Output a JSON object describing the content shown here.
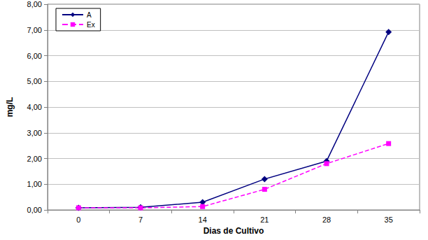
{
  "chart_data": {
    "type": "line",
    "x_label": "Dias de Cultivo",
    "y_label": "mg/L",
    "categories": [
      "0",
      "7",
      "14",
      "21",
      "28",
      "35"
    ],
    "series": [
      {
        "name": "A",
        "color": "#000080",
        "marker": "diamond",
        "line_style": "solid",
        "values": [
          0.08,
          0.1,
          0.3,
          1.2,
          1.9,
          6.92
        ]
      },
      {
        "name": "Ex",
        "color": "#ff00ff",
        "marker": "square",
        "line_style": "dashed",
        "values": [
          0.08,
          0.08,
          0.13,
          0.8,
          1.8,
          2.58
        ]
      }
    ],
    "ylim": [
      0,
      8
    ],
    "yticks": [
      {
        "value": 0,
        "label": "0,00"
      },
      {
        "value": 1,
        "label": "1,00"
      },
      {
        "value": 2,
        "label": "2,00"
      },
      {
        "value": 3,
        "label": "3,00"
      },
      {
        "value": 4,
        "label": "4,00"
      },
      {
        "value": 5,
        "label": "5,00"
      },
      {
        "value": 6,
        "label": "6,00"
      },
      {
        "value": 7,
        "label": "7,00"
      },
      {
        "value": 8,
        "label": "8,00"
      }
    ],
    "grid": true,
    "legend": "upper left"
  }
}
